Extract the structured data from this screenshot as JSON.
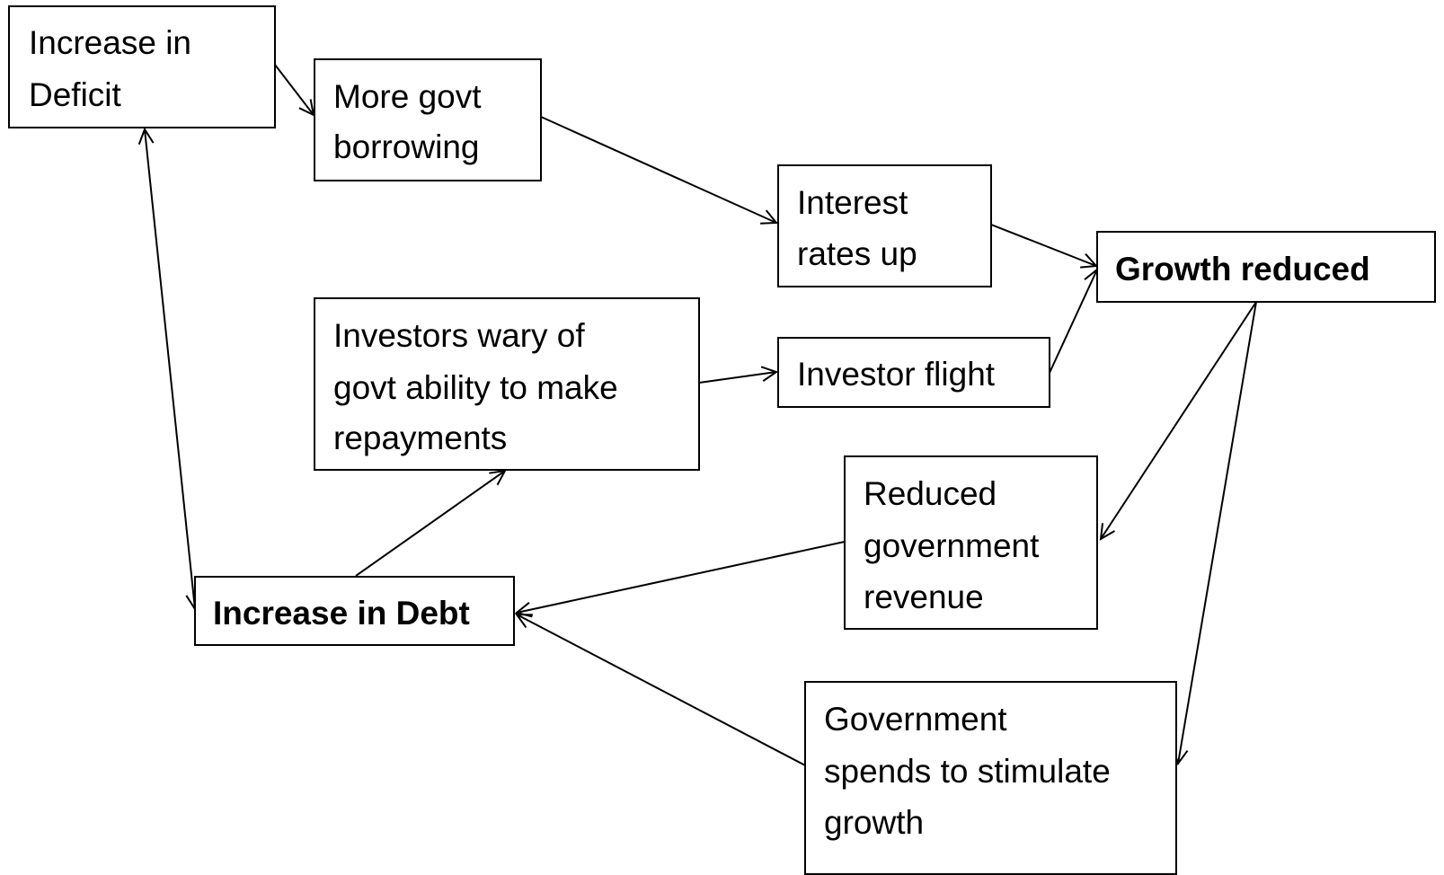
{
  "nodes": [
    {
      "lines": [
        "Increase in",
        "Deficit"
      ]
    },
    {
      "lines": [
        "More govt",
        "borrowing"
      ]
    },
    {
      "lines": [
        "Interest",
        "rates up"
      ]
    },
    {
      "lines": [
        "Growth reduced"
      ]
    },
    {
      "lines": [
        "Investors wary of",
        "govt ability to make",
        "repayments"
      ]
    },
    {
      "lines": [
        "Investor flight"
      ]
    },
    {
      "lines": [
        "Reduced",
        "government",
        "revenue"
      ]
    },
    {
      "lines": [
        "Increase in Debt"
      ]
    },
    {
      "lines": [
        "Government",
        "spends to stimulate",
        "growth"
      ]
    }
  ]
}
